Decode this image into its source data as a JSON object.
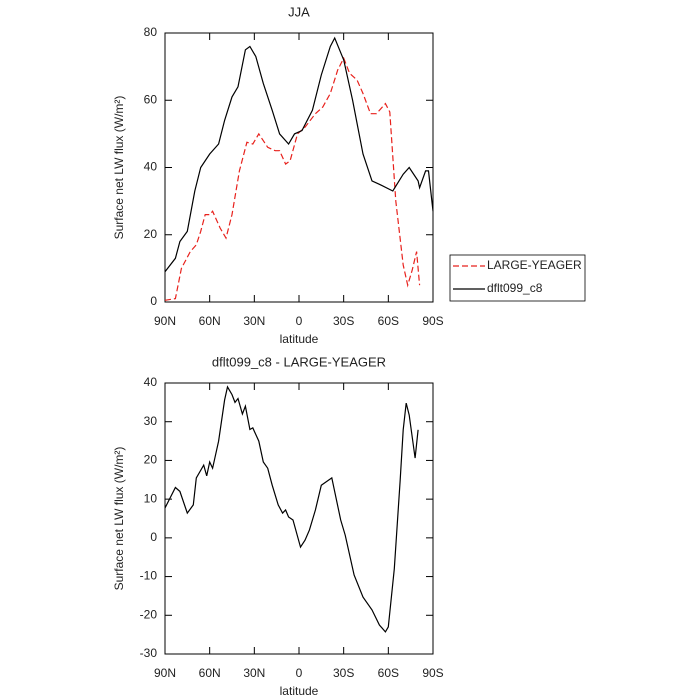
{
  "chart_data": [
    {
      "type": "line",
      "title": "JJA",
      "xlabel": "latitude",
      "ylabel": "Surface net LW flux (W/m²)",
      "xlim": [
        90,
        -90
      ],
      "ylim": [
        0,
        80
      ],
      "xticks": [
        {
          "value": 90,
          "label": "90N"
        },
        {
          "value": 60,
          "label": "60N"
        },
        {
          "value": 30,
          "label": "30N"
        },
        0,
        {
          "value": -30,
          "label": "30S"
        },
        {
          "value": -60,
          "label": "60S"
        },
        {
          "value": -90,
          "label": "90S"
        }
      ],
      "yticks": [
        0,
        20,
        40,
        60,
        80
      ],
      "legend": "right",
      "series": [
        {
          "name": "LARGE-YEAGER",
          "color": "#e8211c",
          "line_style": "dashed",
          "x": [
            90,
            83,
            79,
            73,
            69,
            66,
            63,
            60,
            58,
            53,
            49,
            45,
            40,
            35,
            31,
            27,
            21,
            16,
            13,
            9,
            6,
            1,
            -4,
            -11,
            -16,
            -21,
            -26,
            -30,
            -34,
            -39,
            -43,
            -48,
            -52,
            -58,
            -61,
            -65,
            -70,
            -73,
            -76,
            -79,
            -81
          ],
          "values": [
            0.5,
            1,
            10,
            15,
            17,
            21,
            26,
            26,
            27,
            22,
            19,
            26,
            39,
            47.5,
            47,
            50,
            46,
            45,
            45,
            41,
            42,
            50,
            52,
            56,
            58,
            62,
            69,
            72.5,
            68,
            66,
            62,
            56,
            56,
            59,
            56.5,
            30,
            11,
            5,
            9.5,
            15,
            5
          ]
        },
        {
          "name": "dflt099_c8",
          "color": "#000000",
          "line_style": "solid",
          "x": [
            90,
            83,
            80,
            75,
            70,
            66,
            60,
            54,
            50,
            45,
            41,
            36,
            33,
            29,
            24,
            18,
            13,
            7,
            3,
            -2,
            -9,
            -15,
            -21,
            -24,
            -30,
            -36,
            -43,
            -49,
            -54,
            -63,
            -70,
            -74,
            -80,
            -81,
            -85,
            -87,
            -90
          ],
          "values": [
            9,
            13,
            18,
            21,
            33,
            40,
            44,
            47,
            54,
            61,
            64,
            75,
            76,
            73,
            65,
            57,
            50,
            47,
            50,
            51,
            57,
            67.5,
            76,
            78.5,
            72,
            60,
            44,
            36,
            35,
            33,
            38,
            40,
            36,
            34,
            39,
            39,
            27
          ]
        }
      ]
    },
    {
      "type": "line",
      "title": "dflt099_c8 - LARGE-YEAGER",
      "xlabel": "latitude",
      "ylabel": "Surface net LW flux (W/m²)",
      "xlim": [
        90,
        -90
      ],
      "ylim": [
        -30,
        40
      ],
      "xticks": [
        {
          "value": 90,
          "label": "90N"
        },
        {
          "value": 60,
          "label": "60N"
        },
        {
          "value": 30,
          "label": "30N"
        },
        0,
        {
          "value": -30,
          "label": "30S"
        },
        {
          "value": -60,
          "label": "60S"
        },
        {
          "value": -90,
          "label": "90S"
        }
      ],
      "yticks": [
        -30,
        -20,
        -10,
        0,
        10,
        20,
        30,
        40
      ],
      "series": [
        {
          "color": "#000000",
          "line_style": "solid",
          "x": [
            90,
            87,
            83,
            80,
            75,
            71,
            69,
            64,
            62,
            60,
            58,
            54,
            50,
            48,
            45,
            43,
            41,
            38,
            36,
            33,
            31,
            27,
            24,
            21,
            18,
            14,
            11,
            9,
            7,
            4,
            -1,
            -4,
            -7,
            -11,
            -15,
            -22,
            -28,
            -31,
            -37,
            -43,
            -49,
            -54,
            -58,
            -60,
            -64,
            -68,
            -70,
            -72,
            -74,
            -78,
            -80
          ],
          "values": [
            7.7,
            10,
            13,
            12,
            6.4,
            8.5,
            15.5,
            18.8,
            16,
            19.6,
            18,
            25,
            35.6,
            39,
            37,
            35,
            36,
            32,
            34,
            28,
            28.4,
            25,
            19.6,
            18,
            13.6,
            8.5,
            6.4,
            7.2,
            5.4,
            4.6,
            -2.4,
            -0.6,
            2,
            7.2,
            13.6,
            15.5,
            4.6,
            0.7,
            -9.6,
            -15.3,
            -18.6,
            -22.5,
            -24.3,
            -23,
            -8,
            15,
            27.9,
            34.8,
            31.7,
            20.6,
            27.9
          ]
        }
      ]
    }
  ]
}
